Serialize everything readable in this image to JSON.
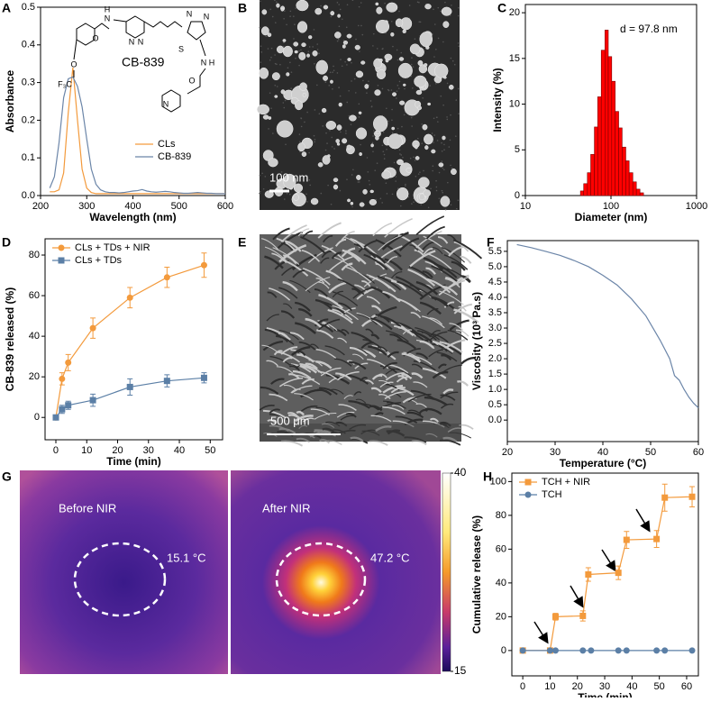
{
  "chart_data": [
    {
      "type": "line",
      "panel": "A",
      "xlabel": "Wavelength (nm)",
      "ylabel": "Absorbance",
      "molecule_name": "CB-839",
      "structure_labels": [
        "H",
        "N",
        "O",
        "N",
        "N",
        "N",
        "N",
        "S",
        "N",
        "H",
        "O",
        "N",
        "O",
        "F₃C"
      ],
      "x": [
        220,
        230,
        240,
        250,
        260,
        270,
        280,
        290,
        300,
        310,
        320,
        330,
        340,
        350,
        360,
        370,
        380,
        390,
        400,
        410,
        420,
        430,
        440,
        450,
        460,
        470,
        480,
        490,
        500,
        510,
        520,
        530,
        540,
        550,
        560,
        570,
        580,
        590,
        600
      ],
      "series": [
        {
          "name": "CLs",
          "color": "#f39a3c",
          "values": [
            0.01,
            0.01,
            0.015,
            0.06,
            0.22,
            0.34,
            0.2,
            0.07,
            0.02,
            0.008,
            0.005,
            0.005,
            0.005,
            0.005,
            0.005,
            0.005,
            0.005,
            0.005,
            0.005,
            0.005,
            0.005,
            0.005,
            0.005,
            0.005,
            0.005,
            0.005,
            0.005,
            0.005,
            0.005,
            0.005,
            0.005,
            0.005,
            0.005,
            0.005,
            0.005,
            0.005,
            0.005,
            0.005,
            0.005
          ]
        },
        {
          "name": "CB-839",
          "color": "#6b85a8",
          "values": [
            0.02,
            0.05,
            0.14,
            0.26,
            0.31,
            0.315,
            0.29,
            0.235,
            0.15,
            0.07,
            0.03,
            0.015,
            0.01,
            0.008,
            0.008,
            0.007,
            0.008,
            0.01,
            0.012,
            0.013,
            0.016,
            0.012,
            0.01,
            0.009,
            0.01,
            0.011,
            0.01,
            0.008,
            0.007,
            0.006,
            0.006,
            0.007,
            0.008,
            0.007,
            0.006,
            0.006,
            0.005,
            0.005,
            0.005
          ]
        }
      ],
      "xlim": [
        200,
        600
      ],
      "xticks": [
        200,
        300,
        400,
        500,
        600
      ],
      "ylim": [
        0,
        0.5
      ],
      "yticks": [
        {
          "value": 0,
          "label": "0.0"
        },
        0.1,
        0.2,
        0.3,
        0.4,
        0.5
      ],
      "legend": "lower right"
    },
    {
      "type": "histogram",
      "panel": "C",
      "xlabel": "Diameter (nm)",
      "ylabel": "Intensity (%)",
      "annotation": "d = 97.8 nm",
      "bins": [
        44,
        48,
        53,
        58,
        64,
        70,
        77,
        85,
        93,
        102,
        112,
        123,
        135,
        149,
        163,
        180,
        198,
        218,
        240
      ],
      "values": [
        0.5,
        1.3,
        2.5,
        4.5,
        7.5,
        10.8,
        15.9,
        18.1,
        15.2,
        12.5,
        9.2,
        7.4,
        5.3,
        3.8,
        2.5,
        1.5,
        0.7,
        0.3
      ],
      "color": "#ff0000",
      "xscale": "log",
      "xlim": [
        10,
        1000
      ],
      "xticks": [
        10,
        100,
        1000
      ],
      "ylim": [
        0,
        20.9
      ],
      "yticks": [
        0,
        5,
        10,
        15,
        20
      ]
    },
    {
      "type": "line",
      "panel": "D",
      "xlabel": "Time (min)",
      "ylabel": "CB-839 released (%)",
      "x": [
        0,
        2,
        4,
        12,
        24,
        36,
        48
      ],
      "series": [
        {
          "name": "CLs + TDs + NIR",
          "color": "#f39a3c",
          "marker": "circle",
          "values": [
            0,
            19,
            27,
            44,
            59,
            69,
            75
          ],
          "errors": [
            0,
            3,
            4,
            5,
            5,
            5,
            6
          ]
        },
        {
          "name": "CLs + TDs",
          "color": "#5b7fa6",
          "marker": "square",
          "values": [
            0,
            4,
            6,
            8.5,
            15,
            18,
            19.5
          ],
          "errors": [
            0,
            2,
            2,
            3,
            4,
            3,
            2.5
          ]
        }
      ],
      "xlim": [
        -3.5,
        54
      ],
      "xticks": [
        0,
        10,
        20,
        30,
        40,
        50
      ],
      "ylim": [
        -11,
        88
      ],
      "yticks": [
        0,
        20,
        40,
        60,
        80
      ],
      "legend": "upper left"
    },
    {
      "type": "line",
      "panel": "F",
      "xlabel": "Temperature (°C)",
      "ylabel": "Viscosity (10³ Pa.s)",
      "x": [
        22,
        25,
        28,
        31,
        34,
        37,
        40,
        43,
        46,
        49,
        52,
        54,
        55,
        56,
        57,
        58,
        59,
        60
      ],
      "series": [
        {
          "color": "#6b85a8",
          "values": [
            5.72,
            5.62,
            5.5,
            5.37,
            5.2,
            5.0,
            4.72,
            4.4,
            3.95,
            3.4,
            2.6,
            2.0,
            1.45,
            1.3,
            1.0,
            0.75,
            0.55,
            0.4
          ]
        }
      ],
      "xlim": [
        20,
        60
      ],
      "xticks": [
        20,
        30,
        40,
        50,
        60
      ],
      "ylim": [
        -0.7,
        5.85
      ],
      "yticks": [
        {
          "value": 0,
          "label": "0.0"
        },
        0.5,
        {
          "value": 1,
          "label": "1.0"
        },
        1.5,
        {
          "value": 2,
          "label": "2.0"
        },
        2.5,
        {
          "value": 3,
          "label": "3.0"
        },
        3.5,
        {
          "value": 4,
          "label": "4.0"
        },
        4.5,
        {
          "value": 5,
          "label": "5.0"
        },
        5.5
      ]
    },
    {
      "type": "line",
      "panel": "H",
      "xlabel": "Time (min)",
      "ylabel": "Cumulative release (%)",
      "series": [
        {
          "name": "TCH + NIR",
          "color": "#f39a3c",
          "marker": "square",
          "x": [
            0,
            10,
            12,
            22,
            24,
            35,
            38,
            49,
            52,
            62
          ],
          "values": [
            0,
            0,
            20,
            20.5,
            45,
            46,
            65.5,
            66,
            90.5,
            91
          ],
          "errors": [
            0,
            0,
            2,
            3,
            4,
            4,
            5,
            5,
            8,
            6
          ]
        },
        {
          "name": "TCH",
          "color": "#5b7fa6",
          "marker": "circle",
          "x": [
            0,
            10,
            12,
            22,
            25,
            35,
            38,
            49,
            52,
            62
          ],
          "values": [
            0,
            0,
            0,
            0,
            0,
            0,
            0,
            0,
            0,
            0
          ]
        }
      ],
      "xlim": [
        -4,
        64.3
      ],
      "xticks": [
        0,
        10,
        20,
        30,
        40,
        50,
        60
      ],
      "ylim": [
        -15,
        105
      ],
      "yticks": [
        0,
        20,
        40,
        60,
        80,
        100
      ],
      "legend": "upper left"
    }
  ],
  "images": [
    {
      "panel": "B",
      "scale_bar": "100 nm"
    },
    {
      "panel": "E",
      "scale_bar": "500 μm"
    },
    {
      "panel": "G",
      "labels": [
        "Before NIR",
        "After NIR"
      ],
      "temperatures": [
        "15.1 °C",
        "47.2 °C"
      ],
      "colorbar": {
        "lim": [
          15,
          40
        ],
        "ticks": [
          40,
          15
        ]
      }
    }
  ]
}
